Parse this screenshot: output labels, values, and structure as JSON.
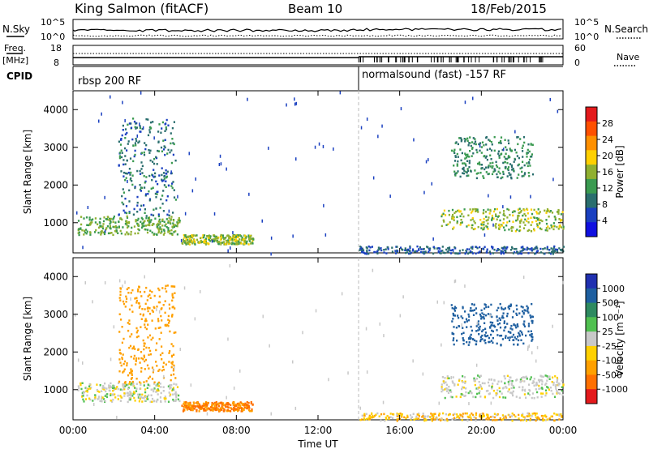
{
  "header": {
    "station": "King Salmon (fitACF)",
    "beam": "Beam 10",
    "date": "18/Feb/2015"
  },
  "top_panels": {
    "nsky_label": "N.Sky",
    "nsearch_label": "N.Search",
    "noise_ticks": [
      "10^5",
      "10^0"
    ],
    "freq_label_1": "Freq.",
    "freq_label_2": "[MHz]",
    "freq_ticks": [
      "18",
      "8"
    ],
    "nave_label": "Nave",
    "nave_ticks": [
      "60",
      "0"
    ],
    "cpid_label": "CPID",
    "cpid_segments": [
      {
        "start_hour": 0,
        "end_hour": 14,
        "label": "rbsp 200 RF"
      },
      {
        "start_hour": 14,
        "end_hour": 24,
        "label": "normalsound (fast) -157 RF"
      }
    ]
  },
  "chart_data": [
    {
      "type": "heatmap",
      "name": "power",
      "xlabel": "",
      "ylabel": "Slant Range [km]",
      "xlim": [
        0,
        24
      ],
      "ylim": [
        200,
        4500
      ],
      "yticks": [
        "1000",
        "2000",
        "3000",
        "4000"
      ],
      "colorbar_label": "Power [dB]",
      "colorbar_ticks": [
        "28",
        "24",
        "20",
        "16",
        "12",
        "8",
        "4"
      ],
      "colorbar_colors": [
        "#e41a1c",
        "#ff5000",
        "#ff9000",
        "#ffd000",
        "#90b030",
        "#3a9a50",
        "#2a6e6e",
        "#1a40c0",
        "#1010e0"
      ],
      "echo_regions": [
        {
          "t0": 0.2,
          "t1": 5.2,
          "r0": 700,
          "r1": 1200,
          "level": 14
        },
        {
          "t0": 2.2,
          "t1": 5.0,
          "r0": 1200,
          "r1": 3800,
          "level": 8
        },
        {
          "t0": 5.3,
          "t1": 8.8,
          "r0": 450,
          "r1": 700,
          "level": 16
        },
        {
          "t0": 18.0,
          "t1": 24.0,
          "r0": 800,
          "r1": 1400,
          "level": 16
        },
        {
          "t0": 18.5,
          "t1": 22.5,
          "r0": 2200,
          "r1": 3300,
          "level": 10
        },
        {
          "t0": 14.0,
          "t1": 24.0,
          "r0": 200,
          "r1": 400,
          "level": 6
        }
      ]
    },
    {
      "type": "heatmap",
      "name": "velocity",
      "xlabel": "Time UT",
      "ylabel": "Slant Range [km]",
      "xlim": [
        0,
        24
      ],
      "ylim": [
        200,
        4500
      ],
      "xticks": [
        "00:00",
        "04:00",
        "08:00",
        "12:00",
        "16:00",
        "20:00",
        "00:00"
      ],
      "yticks": [
        "1000",
        "2000",
        "3000",
        "4000"
      ],
      "colorbar_label": "Velocity [m s⁻¹]",
      "colorbar_ticks": [
        "1000",
        "500",
        "100",
        "25",
        "-25",
        "-100",
        "-500",
        "-1000"
      ],
      "colorbar_colors": [
        "#2030b0",
        "#1e5fa0",
        "#2e8a60",
        "#50c050",
        "#c8c8c8",
        "#ffd000",
        "#ffa000",
        "#ff7000",
        "#e41a1c"
      ],
      "echo_regions": [
        {
          "t0": 0.2,
          "t1": 5.2,
          "r0": 700,
          "r1": 1200,
          "velocity": 0
        },
        {
          "t0": 2.2,
          "t1": 5.0,
          "r0": 1200,
          "r1": 3800,
          "velocity": -100
        },
        {
          "t0": 5.3,
          "t1": 8.8,
          "r0": 450,
          "r1": 700,
          "velocity": -300
        },
        {
          "t0": 18.0,
          "t1": 24.0,
          "r0": 800,
          "r1": 1400,
          "velocity": 0
        },
        {
          "t0": 18.5,
          "t1": 22.5,
          "r0": 2200,
          "r1": 3300,
          "velocity": 600
        },
        {
          "t0": 14.0,
          "t1": 24.0,
          "r0": 200,
          "r1": 400,
          "velocity": -50
        }
      ]
    }
  ]
}
